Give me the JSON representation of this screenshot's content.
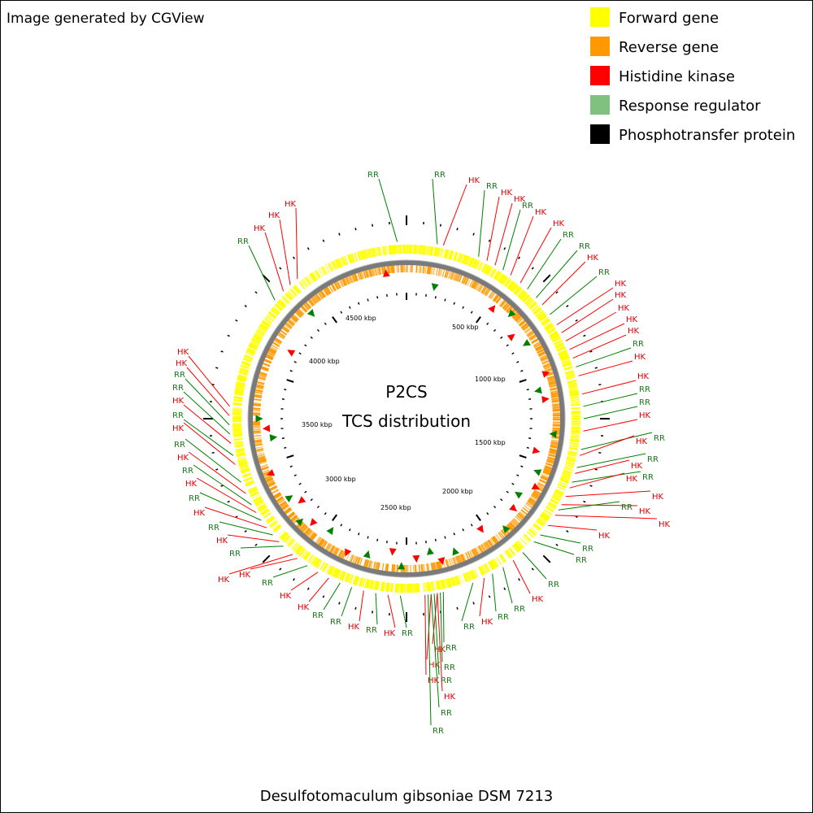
{
  "credit": "Image generated by CGView",
  "legend": [
    {
      "label": "Forward gene",
      "color": "#ffff00"
    },
    {
      "label": "Reverse gene",
      "color": "#ff9900"
    },
    {
      "label": "Histidine kinase",
      "color": "#ff0000"
    },
    {
      "label": "Response regulator",
      "color": "#80c080"
    },
    {
      "label": "Phosphotransfer protein",
      "color": "#000000"
    }
  ],
  "center_title": "P2CS",
  "center_subtitle": "TCS distribution",
  "organism": "Desulfotomaculum gibsoniae DSM 7213",
  "ticks": [
    "500 kbp",
    "1000 kbp",
    "1500 kbp",
    "2000 kbp",
    "2500 kbp",
    "3000 kbp",
    "3500 kbp",
    "4000 kbp",
    "4500 kbp"
  ],
  "feature_labels": {
    "hk": "HK",
    "rr": "RR"
  },
  "colors": {
    "forward": "#ffff00",
    "reverse": "#ff9900",
    "hk": "#ff0000",
    "rr": "#008000",
    "ring": "#808080",
    "hk_text": "#e00000",
    "rr_text": "#1a7a1a"
  }
}
